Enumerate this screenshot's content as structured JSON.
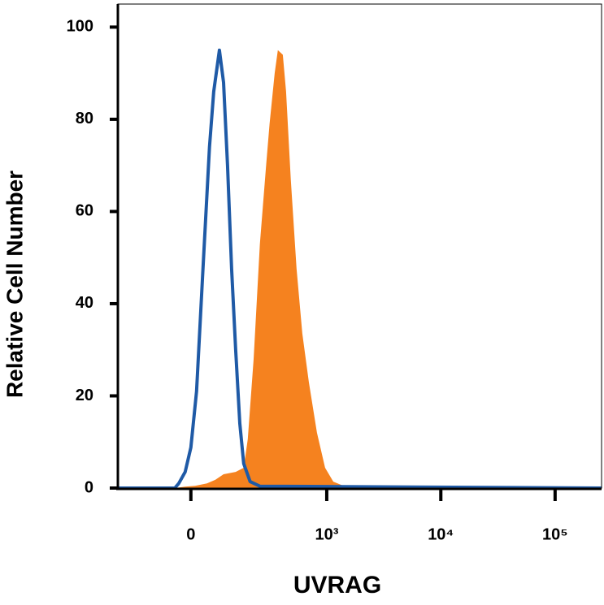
{
  "chart_data": {
    "type": "histogram-overlay",
    "xlabel": "UVRAG",
    "ylabel": "Relative Cell Number",
    "xscale": "biexponential",
    "xlim": [
      -268,
      255000
    ],
    "ylim": [
      0,
      105
    ],
    "xticks": [
      0,
      {
        "value": 1000,
        "label": "10³"
      },
      {
        "value": 10000,
        "label": "10⁴"
      },
      {
        "value": 100000,
        "label": "10⁵"
      }
    ],
    "yticks": [
      0,
      20,
      40,
      60,
      80,
      100
    ],
    "series": [
      {
        "style": "area",
        "color": "#f5821f",
        "x": [
          -268,
          -43,
          -15,
          11,
          43,
          67,
          92,
          134,
          166,
          184,
          212,
          245,
          283,
          304,
          340,
          364,
          404,
          433,
          478,
          539,
          607,
          694,
          820,
          967,
          1143,
          1462,
          1586,
          255000
        ],
        "values": [
          0,
          0,
          0.3,
          0.5,
          1,
          1.8,
          3,
          3.5,
          4.4,
          10.6,
          28,
          53,
          70.5,
          79,
          90,
          95,
          94,
          86,
          67,
          47.6,
          33.5,
          23,
          12,
          4.4,
          1.4,
          0.3,
          0,
          0
        ]
      },
      {
        "style": "line",
        "color": "#1f5aa6",
        "x": [
          -268,
          -79,
          -43,
          -32,
          -15,
          0,
          15,
          32,
          50,
          62,
          79,
          92,
          105,
          119,
          134,
          150,
          166,
          195,
          245,
          255000
        ],
        "values": [
          0,
          0,
          0,
          1,
          3.5,
          8.8,
          21,
          47.6,
          74,
          86,
          95,
          88,
          70,
          47.6,
          30,
          14,
          5.3,
          1.4,
          0.4,
          0
        ]
      }
    ]
  }
}
